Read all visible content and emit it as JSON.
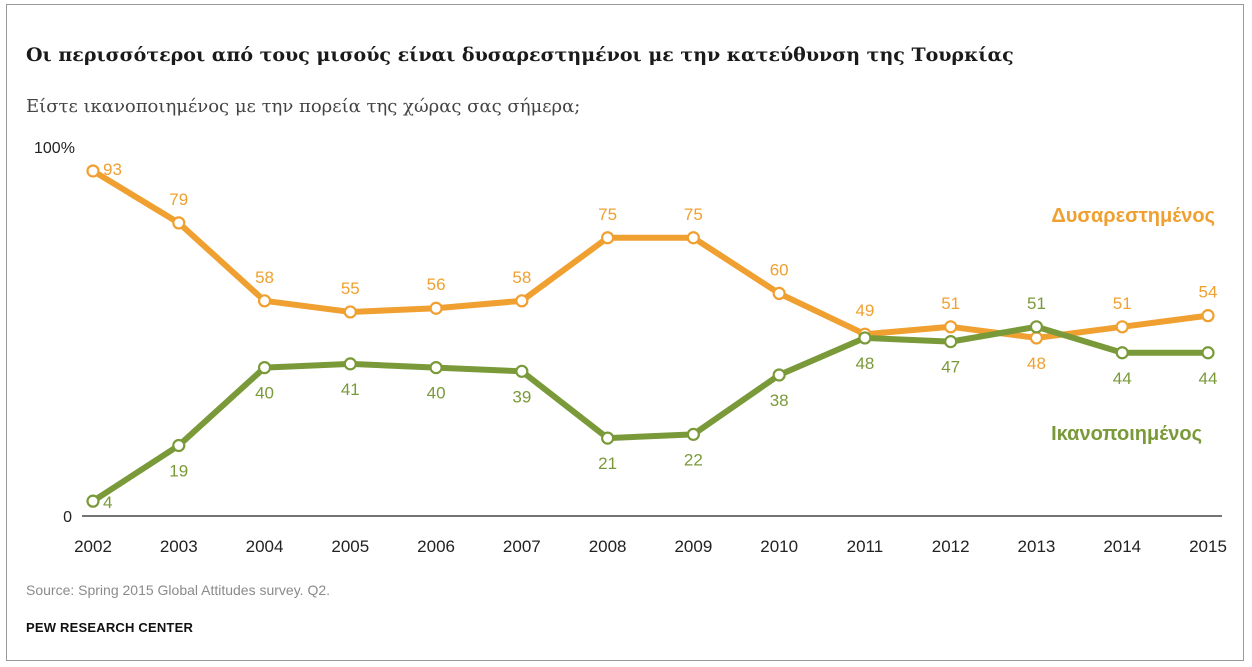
{
  "title": "Οι περισσότεροι από τους μισούς είναι δυσαρεστημένοι με την κατεύθυνση της Τουρκίας",
  "subtitle": "Είστε ικανοποιημένος με την πορεία της χώρας σας σήμερα;",
  "source": "Source: Spring 2015 Global Attitudes survey. Q2.",
  "brand": "PEW RESEARCH CENTER",
  "chart_data": {
    "type": "line",
    "x": [
      "2002",
      "2003",
      "2004",
      "2005",
      "2006",
      "2007",
      "2008",
      "2009",
      "2010",
      "2011",
      "2012",
      "2013",
      "2014",
      "2015"
    ],
    "ylim": [
      0,
      100
    ],
    "ytick_labels": [
      "0",
      "100%"
    ],
    "series": [
      {
        "name": "Δυσαρεστημένος",
        "color": "#f0a030",
        "values": [
          93,
          79,
          58,
          55,
          56,
          58,
          75,
          75,
          60,
          49,
          51,
          48,
          51,
          54
        ]
      },
      {
        "name": "Ικανοποιημένος",
        "color": "#7a9a3a",
        "values": [
          4,
          19,
          40,
          41,
          40,
          39,
          21,
          22,
          38,
          48,
          47,
          51,
          44,
          44
        ]
      }
    ],
    "legend": "inline-right",
    "grid": false
  }
}
